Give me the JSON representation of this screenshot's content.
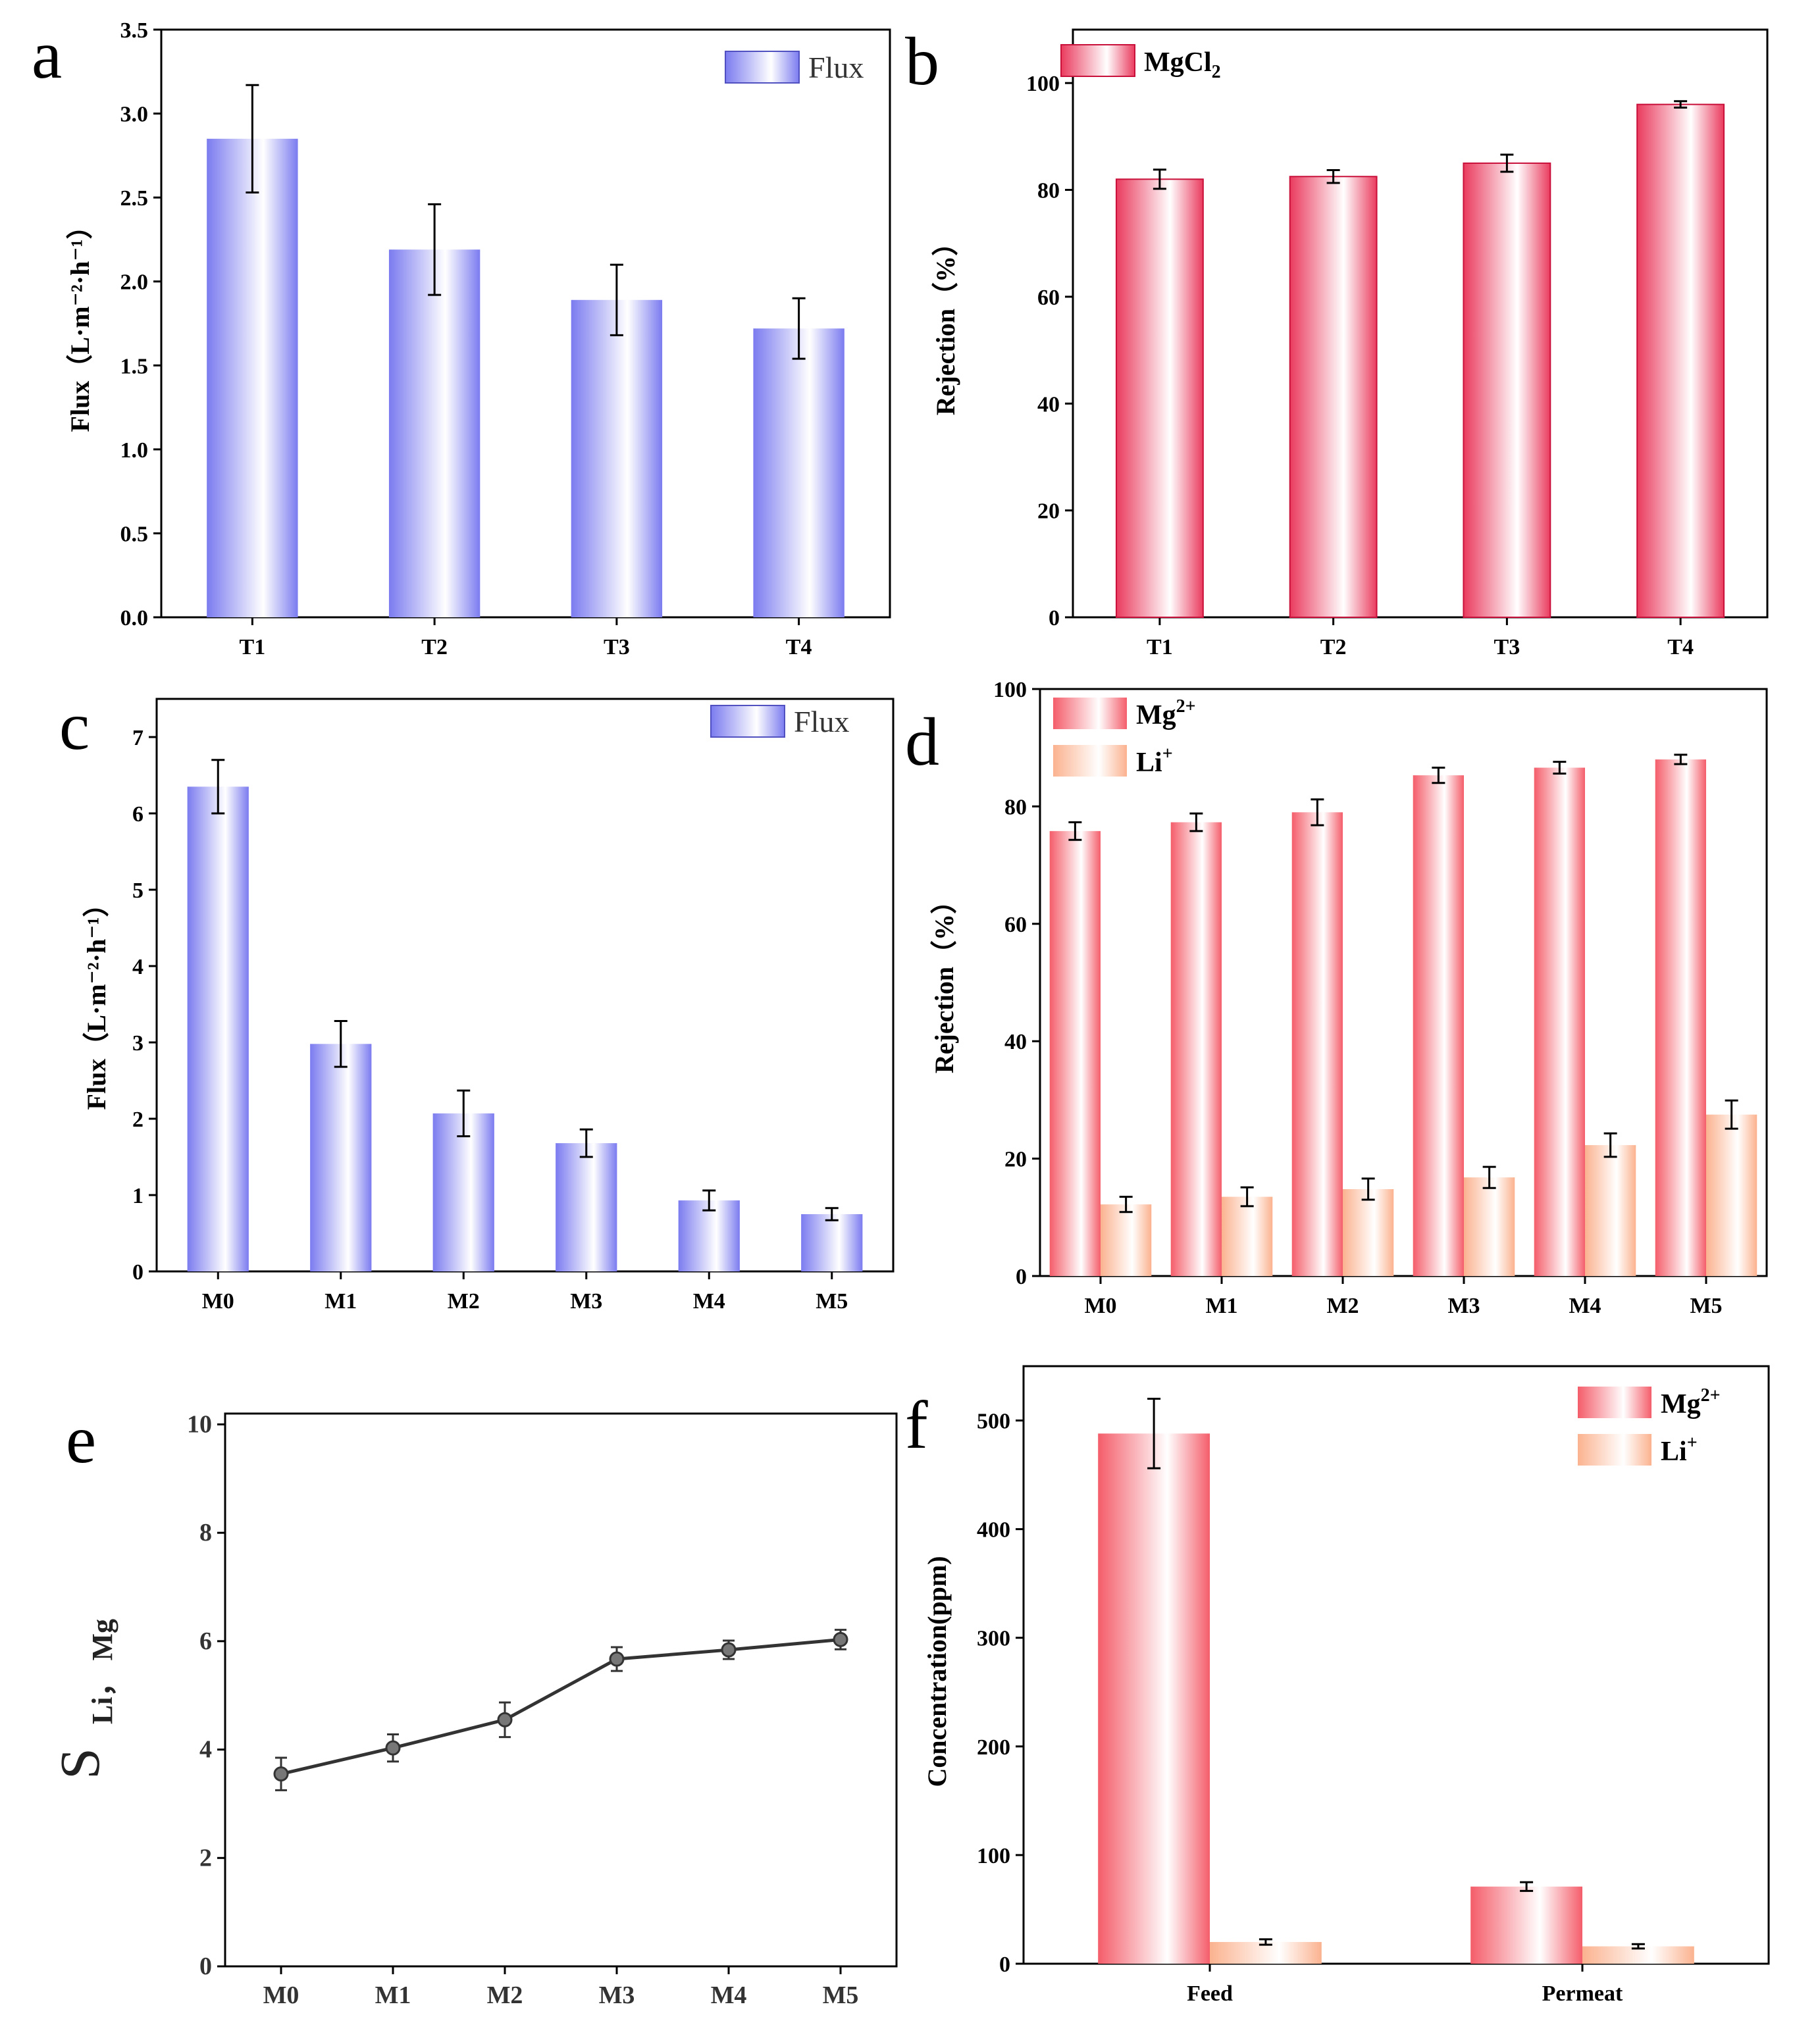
{
  "colors": {
    "blue": "#7b7bf0",
    "red": "#ea3b5e",
    "mg": "#f45d6a",
    "li": "#fbb28f",
    "line": "#333333"
  },
  "chart_data": [
    {
      "panel": "a",
      "type": "bar",
      "categories": [
        "T1",
        "T2",
        "T3",
        "T4"
      ],
      "series": [
        {
          "name": "Flux",
          "values": [
            2.85,
            2.19,
            1.89,
            1.72
          ],
          "errors": [
            0.32,
            0.27,
            0.21,
            0.18
          ],
          "color": "blue"
        }
      ],
      "xlabel": "",
      "ylabel": "Flux（L·m⁻²·h⁻¹）",
      "ylim": [
        0,
        3.5
      ],
      "yticks": [
        "0.0",
        "0.5",
        "1.0",
        "1.5",
        "2.0",
        "2.5",
        "3.0",
        "3.5"
      ],
      "legend": "top-right"
    },
    {
      "panel": "b",
      "type": "bar",
      "categories": [
        "T1",
        "T2",
        "T3",
        "T4"
      ],
      "series": [
        {
          "name": "MgCl",
          "name_sub": "2",
          "values": [
            82,
            82.5,
            85,
            96
          ],
          "errors": [
            1.8,
            1.2,
            1.6,
            0.6
          ],
          "color": "red"
        }
      ],
      "xlabel": "",
      "ylabel": "Rejection（%）",
      "ylim": [
        0,
        110
      ],
      "yticks": [
        "0",
        "20",
        "40",
        "60",
        "80",
        "100"
      ],
      "legend": "top-left"
    },
    {
      "panel": "c",
      "type": "bar",
      "categories": [
        "M0",
        "M1",
        "M2",
        "M3",
        "M4",
        "M5"
      ],
      "series": [
        {
          "name": "Flux",
          "values": [
            6.35,
            2.98,
            2.07,
            1.68,
            0.93,
            0.75
          ],
          "errors": [
            0.35,
            0.3,
            0.3,
            0.18,
            0.13,
            0.08
          ],
          "color": "blue"
        }
      ],
      "xlabel": "",
      "ylabel": "Flux（L·m⁻²·h⁻¹）",
      "ylim": [
        0,
        7.5
      ],
      "yticks": [
        "0",
        "1",
        "2",
        "3",
        "4",
        "5",
        "6",
        "7"
      ],
      "legend": "top-right"
    },
    {
      "panel": "d",
      "type": "bar",
      "categories": [
        "M0",
        "M1",
        "M2",
        "M3",
        "M4",
        "M5"
      ],
      "series": [
        {
          "name": "Mg",
          "name_sup": "2+",
          "values": [
            75.8,
            77.3,
            79,
            85.3,
            86.6,
            88
          ],
          "errors": [
            1.5,
            1.5,
            2.2,
            1.3,
            1,
            0.8
          ],
          "color": "mg"
        },
        {
          "name": "Li",
          "name_sup": "+",
          "values": [
            12.2,
            13.5,
            14.8,
            16.8,
            22.3,
            27.5
          ],
          "errors": [
            1.3,
            1.6,
            1.8,
            1.8,
            2,
            2.4
          ],
          "color": "li"
        }
      ],
      "xlabel": "",
      "ylabel": "Rejection（%）",
      "ylim": [
        0,
        100
      ],
      "yticks": [
        "0",
        "20",
        "40",
        "60",
        "80",
        "100"
      ],
      "legend": "top-left"
    },
    {
      "panel": "e",
      "type": "line",
      "categories": [
        "M0",
        "M1",
        "M2",
        "M3",
        "M4",
        "M5"
      ],
      "series": [
        {
          "name": "S",
          "values": [
            3.55,
            4.03,
            4.55,
            5.67,
            5.84,
            6.03
          ],
          "errors": [
            0.3,
            0.25,
            0.32,
            0.22,
            0.17,
            0.18
          ],
          "color": "line"
        }
      ],
      "xlabel": "",
      "ylabel": "S",
      "ylabel_sub": "Li， Mg",
      "ylim": [
        0,
        10.2
      ],
      "yticks": [
        "0",
        "2",
        "4",
        "6",
        "8",
        "10"
      ]
    },
    {
      "panel": "f",
      "type": "bar",
      "categories": [
        "Feed",
        "Permeat"
      ],
      "series": [
        {
          "name": "Mg",
          "name_sup": "2+",
          "values": [
            488,
            71
          ],
          "errors": [
            32,
            4
          ],
          "color": "mg"
        },
        {
          "name": "Li",
          "name_sup": "+",
          "values": [
            20,
            16
          ],
          "errors": [
            2.5,
            2
          ],
          "color": "li"
        }
      ],
      "xlabel": "",
      "ylabel": "Concentration(ppm)",
      "ylim": [
        0,
        550
      ],
      "yticks": [
        "0",
        "100",
        "200",
        "300",
        "400",
        "500"
      ],
      "legend": "top-right"
    }
  ]
}
